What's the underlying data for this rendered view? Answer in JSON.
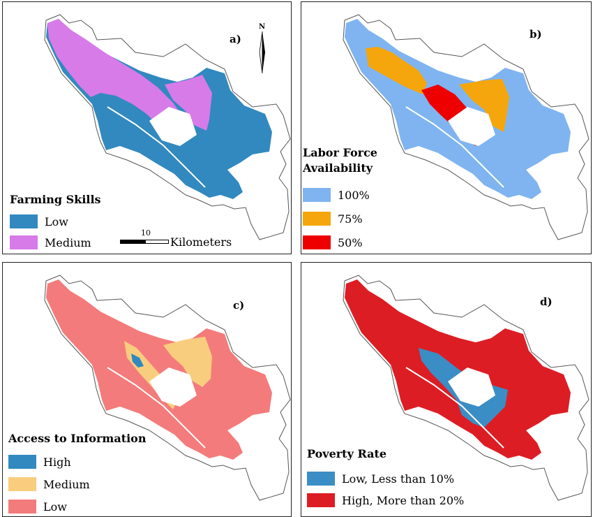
{
  "colors": {
    "boundary": "#ffffff",
    "blue": "#3189bf",
    "magenta": "#d77be8",
    "light_blue": "#7fb4f0",
    "orange": "#f5a60c",
    "red_50": "#ee0000",
    "salmon": "#f47b7b",
    "sand": "#f8cd7e",
    "poverty_blue": "#3b8dc5",
    "poverty_red": "#dd1d24"
  },
  "panel_a": {
    "letter": "a)",
    "legend_title": "Farming Skills",
    "items": [
      {
        "label": "Low",
        "color": "#3189bf"
      },
      {
        "label": "Medium",
        "color": "#d77be8"
      }
    ],
    "scale_number": "10",
    "scale_unit": "Kilometers",
    "north_label": "N"
  },
  "panel_b": {
    "letter": "b)",
    "legend_title_line1": "Labor Force",
    "legend_title_line2": "Availability",
    "items": [
      {
        "label": "100%",
        "color": "#7fb4f0"
      },
      {
        "label": "75%",
        "color": "#f5a60c"
      },
      {
        "label": "50%",
        "color": "#ee0000"
      }
    ]
  },
  "panel_c": {
    "letter": "c)",
    "legend_title": "Access to Information",
    "items": [
      {
        "label": "High",
        "color": "#3189bf"
      },
      {
        "label": "Medium",
        "color": "#f8cd7e"
      },
      {
        "label": "Low",
        "color": "#f47b7b"
      }
    ]
  },
  "panel_d": {
    "letter": "d)",
    "legend_title": "Poverty Rate",
    "items": [
      {
        "label": "Low, Less than 10%",
        "color": "#3b8dc5"
      },
      {
        "label": "High, More than 20%",
        "color": "#dd1d24"
      }
    ]
  }
}
